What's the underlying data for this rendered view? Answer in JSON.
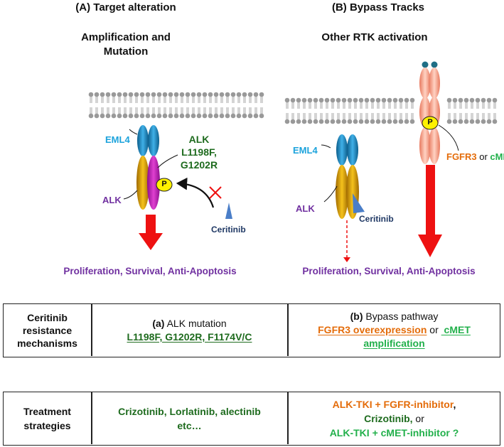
{
  "panel_a": {
    "title": "(A)  Target alteration",
    "subtitle_line1": "Amplification and",
    "subtitle_line2": "Mutation",
    "eml4": "EML4",
    "alk": "ALK",
    "alk_mut_line1": "ALK",
    "alk_mut_line2": "L1198F,",
    "alk_mut_line3": "G1202R",
    "p": "P",
    "drug": "Ceritinib",
    "outcome": "Proliferation, Survival, Anti-Apoptosis"
  },
  "panel_b": {
    "title": "(B)  Bypass Tracks",
    "subtitle": "Other RTK activation",
    "eml4": "EML4",
    "alk": "ALK",
    "drug": "Ceritinib",
    "p": "P",
    "fgfr3": "FGFR3",
    "or": " or ",
    "cmet": "cMET",
    "outcome": "Proliferation, Survival, Anti-Apoptosis"
  },
  "table1": {
    "label_line1": "Ceritinib",
    "label_line2": "resistance",
    "label_line3": "mechanisms",
    "a_prefix": "(a)",
    "a_text": " ALK mutation",
    "a_list": "L1198F, G1202R, F1174V/C",
    "b_prefix": "(b)",
    "b_text": " Bypass pathway",
    "b_fgfr": "FGFR3 overexpression",
    "b_or": " or ",
    "b_cmet_line1": " cMET",
    "b_cmet_line2": "amplification"
  },
  "table2": {
    "label_line1": "Treatment",
    "label_line2": "strategies",
    "a_line1": "Crizotinib, Lorlatinib, alectinib",
    "a_line2": "etc…",
    "b_line1": "ALK-TKI + FGFR-inhibitor",
    "b_comma": ",",
    "b_line2": "Crizotinib,",
    "b_or": " or",
    "b_line3": "ALK-TKI + cMET-inhibitor ?"
  },
  "colors": {
    "purple": "#7030a0",
    "dark_green": "#1e6b1e",
    "bright_green": "#22b04b",
    "orange": "#e46c0a",
    "cyan": "#1ca3dc",
    "navy": "#1f3864",
    "red": "#ee1111"
  }
}
